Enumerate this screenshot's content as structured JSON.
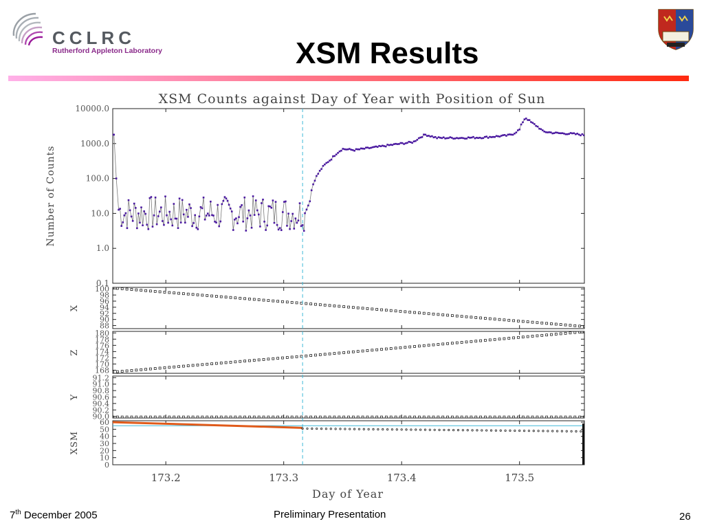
{
  "header": {
    "logo_text": "CCLRC",
    "logo_subtitle": "Rutherford Appleton Laboratory",
    "title": "XSM Results"
  },
  "footer": {
    "date_day": "7",
    "date_suffix": "th",
    "date_rest": " December 2005",
    "center": "Preliminary Presentation",
    "page_number": "26"
  },
  "colors": {
    "counts_series": "#4b1aa0",
    "counts_line": "#7a7a7a",
    "marker_line": "#3fb8d8",
    "orange_series": "#e05a1a",
    "title_rule_left": "#ff9ee0",
    "title_rule_right": "#ff2a1a"
  },
  "chart_data": {
    "type": "line",
    "title": "XSM Counts against Day of Year with Position of Sun",
    "xlabel": "Day of Year",
    "xlim": [
      173.155,
      173.555
    ],
    "x_ticks": [
      "173.2",
      "173.3",
      "173.4",
      "173.5"
    ],
    "x_tick_values": [
      173.2,
      173.3,
      173.4,
      173.5
    ],
    "vertical_marker_x": 173.316,
    "panels": [
      {
        "id": "counts",
        "ylabel": "Number of Counts",
        "yscale": "log",
        "ylim": [
          0.1,
          10000
        ],
        "y_ticks": [
          "10000.0",
          "1000.0",
          "100.0",
          "10.0",
          "1.0",
          "0.1"
        ],
        "y_tick_values": [
          10000,
          1000,
          100,
          10,
          1,
          0.1
        ],
        "series": [
          {
            "x": [
              173.155,
              173.156,
              173.158,
              173.16,
              173.163,
              173.2,
              173.25,
              173.3,
              173.318,
              173.322,
              173.33,
              173.34,
              173.35,
              173.36,
              173.38,
              173.4,
              173.41,
              173.42,
              173.43,
              173.45,
              173.47,
              173.49,
              173.495,
              173.5,
              173.505,
              173.51,
              173.52,
              173.53,
              173.545,
              173.555
            ],
            "y": [
              1800,
              1800,
              100,
              13,
              10,
              10,
              10,
              10,
              10,
              20,
              150,
              350,
              700,
              650,
              800,
              1000,
              1100,
              1800,
              1450,
              1450,
              1500,
              1700,
              1900,
              2500,
              5500,
              4000,
              2200,
              2000,
              1900,
              1750
            ]
          }
        ]
      },
      {
        "id": "x",
        "ylabel": "X",
        "y_ticks": [
          "100",
          "98",
          "96",
          "94",
          "92",
          "90",
          "88"
        ],
        "y_tick_values": [
          100,
          98,
          96,
          94,
          92,
          90,
          88
        ],
        "ylim": [
          87,
          100.5
        ],
        "series": [
          {
            "x": [
              173.155,
              173.316,
              173.555
            ],
            "y": [
              100.3,
              95.3,
              87.7
            ]
          }
        ]
      },
      {
        "id": "z",
        "ylabel": "Z",
        "y_ticks": [
          "180",
          "178",
          "176",
          "174",
          "172",
          "170",
          "168"
        ],
        "y_tick_values": [
          180,
          178,
          176,
          174,
          172,
          170,
          168
        ],
        "ylim": [
          167,
          180.5
        ],
        "series": [
          {
            "x": [
              173.155,
              173.316,
              173.555
            ],
            "y": [
              167.4,
              172.5,
              180.4
            ]
          }
        ]
      },
      {
        "id": "y",
        "ylabel": "Y",
        "y_ticks": [
          "91.2",
          "91.0",
          "90.8",
          "90.6",
          "90.4",
          "90.2",
          "90.0"
        ],
        "y_tick_values": [
          91.2,
          91.0,
          90.8,
          90.6,
          90.4,
          90.2,
          90.0
        ],
        "ylim": [
          89.95,
          91.25
        ],
        "series": [
          {
            "x": [
              173.155,
              173.555
            ],
            "y": [
              89.98,
              89.98
            ]
          }
        ]
      },
      {
        "id": "xsm",
        "ylabel": "XSM",
        "y_ticks": [
          "60",
          "50",
          "40",
          "30",
          "20",
          "10",
          "0"
        ],
        "y_tick_values": [
          60,
          50,
          40,
          30,
          20,
          10,
          0
        ],
        "ylim": [
          0,
          62
        ],
        "reference_line_y": 55,
        "series": [
          {
            "name": "",
            "x": [
              173.155,
              173.316
            ],
            "y": [
              60,
              52
            ]
          },
          {
            "name": "",
            "x": [
              173.316,
              173.555
            ],
            "y": [
              51,
              47
            ]
          }
        ]
      }
    ]
  }
}
